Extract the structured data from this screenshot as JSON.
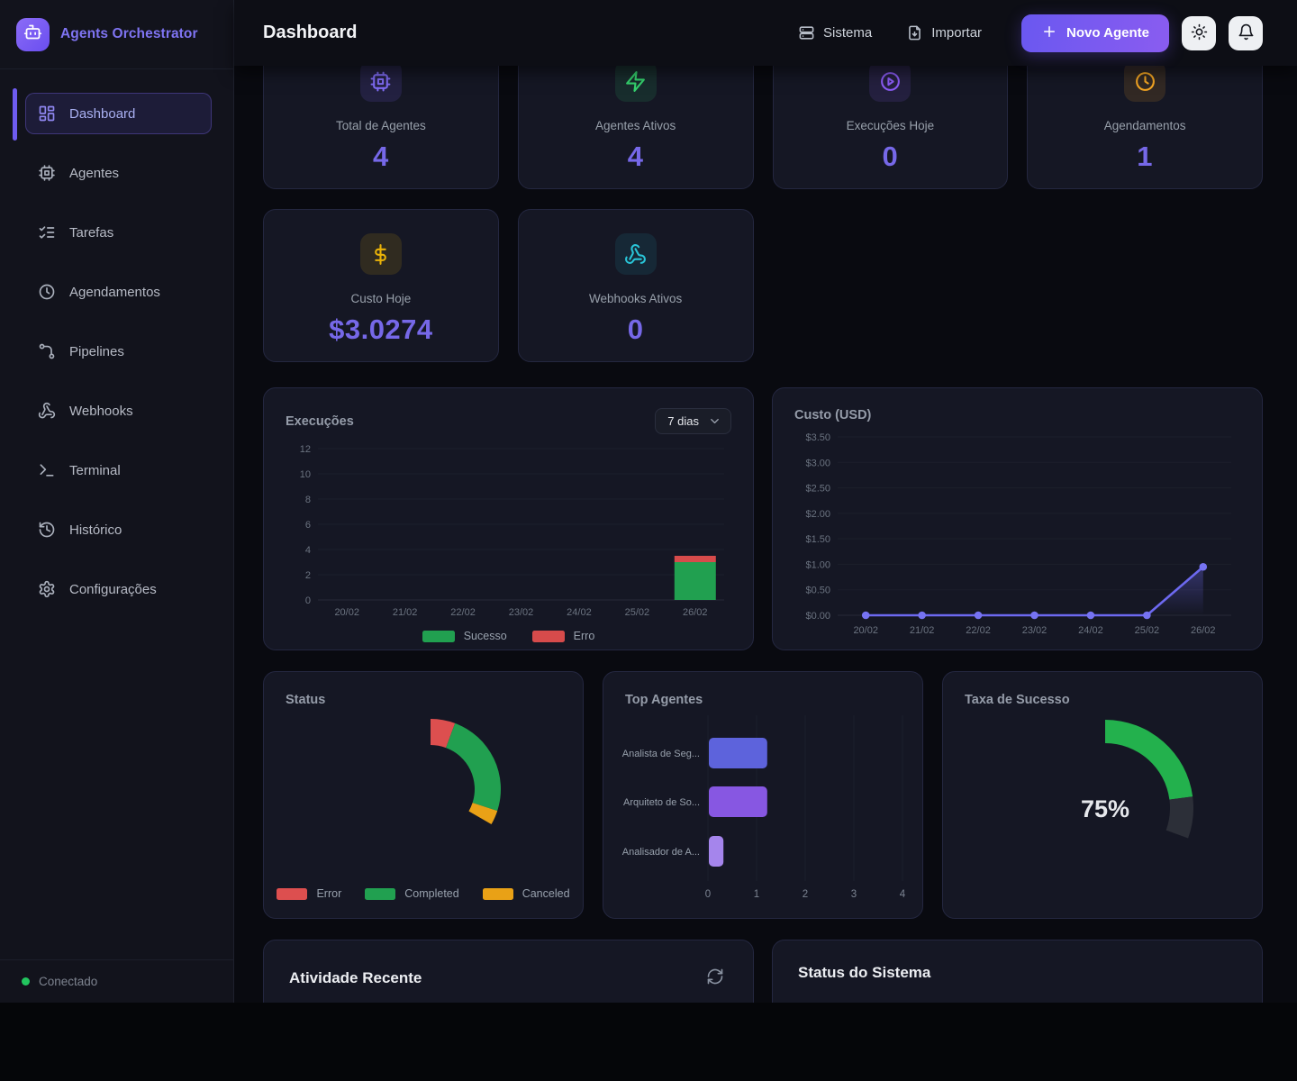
{
  "theme": {
    "accent_purple": "#7668e8",
    "brand_color": "#7f74f2",
    "primary_button_gradient": [
      "#6a58f0",
      "#8a5cf0"
    ],
    "connected_dot": "#22c55e",
    "card_bg": "#151724",
    "sidebar_bg": "#12131c"
  },
  "sidebar": {
    "brand": "Agents Orchestrator",
    "logo_icon": "robot-icon",
    "items": [
      {
        "label": "Dashboard",
        "icon": "dashboard-icon",
        "active": true
      },
      {
        "label": "Agentes",
        "icon": "cpu-icon",
        "active": false
      },
      {
        "label": "Tarefas",
        "icon": "checklist-icon",
        "active": false
      },
      {
        "label": "Agendamentos",
        "icon": "clock-icon",
        "active": false
      },
      {
        "label": "Pipelines",
        "icon": "pipeline-icon",
        "active": false
      },
      {
        "label": "Webhooks",
        "icon": "webhook-icon",
        "active": false
      },
      {
        "label": "Terminal",
        "icon": "terminal-icon",
        "active": false
      },
      {
        "label": "Histórico",
        "icon": "history-icon",
        "active": false
      },
      {
        "label": "Configurações",
        "icon": "gear-icon",
        "active": false
      }
    ],
    "footer_status": "Conectado"
  },
  "header": {
    "title": "Dashboard",
    "actions": [
      {
        "label": "Sistema",
        "icon": "server-icon"
      },
      {
        "label": "Importar",
        "icon": "import-icon"
      }
    ],
    "primary_action": {
      "label": "Novo Agente",
      "icon": "plus-icon"
    },
    "icon_buttons": [
      {
        "name": "theme-toggle",
        "icon": "sun-icon"
      },
      {
        "name": "notifications",
        "icon": "bell-icon"
      }
    ]
  },
  "stats": [
    {
      "label": "Total de Agentes",
      "value": "4",
      "icon": "cpu-icon",
      "icon_color": "#7e6bf2",
      "icon_bg": "rgba(120,100,245,0.14)"
    },
    {
      "label": "Agentes Ativos",
      "value": "4",
      "icon": "lightning-icon",
      "icon_color": "#34d16d",
      "icon_bg": "rgba(46,204,113,0.12)"
    },
    {
      "label": "Execuções Hoje",
      "value": "0",
      "icon": "play-circle-icon",
      "icon_color": "#8b5cf6",
      "icon_bg": "rgba(139,92,246,0.13)"
    },
    {
      "label": "Agendamentos",
      "value": "1",
      "icon": "clock-icon",
      "icon_color": "#f5a623",
      "icon_bg": "rgba(245,166,35,0.13)"
    },
    {
      "label": "Custo Hoje",
      "value": "$3.0274",
      "icon": "dollar-icon",
      "icon_color": "#eab308",
      "icon_bg": "rgba(234,179,8,0.13)"
    },
    {
      "label": "Webhooks Ativos",
      "value": "0",
      "icon": "webhook-icon",
      "icon_color": "#29c5d8",
      "icon_bg": "rgba(41,197,216,0.10)"
    }
  ],
  "chart_data": [
    {
      "id": "execucoes",
      "type": "bar",
      "title": "Execuções",
      "range_selector": {
        "value": "7 dias",
        "icon": "chevron-down-icon"
      },
      "categories": [
        "20/02",
        "21/02",
        "22/02",
        "23/02",
        "24/02",
        "25/02",
        "26/02"
      ],
      "series": [
        {
          "name": "Sucesso",
          "color": "#21a050",
          "values": [
            0,
            0,
            0,
            0,
            0,
            0,
            3
          ]
        },
        {
          "name": "Erro",
          "color": "#d64b4b",
          "values": [
            0,
            0,
            0,
            0,
            0,
            0,
            0.5
          ]
        }
      ],
      "stacked": true,
      "ylim": [
        0,
        12
      ],
      "yticks": [
        0,
        2,
        4,
        6,
        8,
        10,
        12
      ],
      "grid": true,
      "legend_position": "bottom"
    },
    {
      "id": "custo",
      "type": "line",
      "title": "Custo (USD)",
      "categories": [
        "20/02",
        "21/02",
        "22/02",
        "23/02",
        "24/02",
        "25/02",
        "26/02"
      ],
      "series": [
        {
          "name": "Custo",
          "color": "#6d69f0",
          "values": [
            0,
            0,
            0,
            0,
            0,
            0,
            0.95
          ]
        }
      ],
      "ylim": [
        0,
        3.5
      ],
      "ytick_labels": [
        "$0.00",
        "$0.50",
        "$1.00",
        "$1.50",
        "$2.00",
        "$2.50",
        "$3.00",
        "$3.50"
      ],
      "area_fill": true,
      "grid": true
    },
    {
      "id": "status",
      "type": "donut",
      "title": "Status",
      "start_angle_deg": 0,
      "sweep_deg": 120,
      "segments": [
        {
          "label": "Error",
          "color": "#dd4f4f",
          "fraction": 0.17
        },
        {
          "label": "Completed",
          "color": "#21a050",
          "fraction": 0.73
        },
        {
          "label": "Canceled",
          "color": "#e9a116",
          "fraction": 0.1
        }
      ],
      "legend_position": "bottom"
    },
    {
      "id": "top_agentes",
      "type": "bar-horizontal",
      "title": "Top Agentes",
      "categories": [
        "Analista de Seg...",
        "Arquiteto de So...",
        "Analisador de A..."
      ],
      "values": [
        1.2,
        1.2,
        0.3
      ],
      "bar_colors": [
        "#5d63dc",
        "#8757e2",
        "#a585ec"
      ],
      "xlim": [
        0,
        4
      ],
      "xticks": [
        0,
        1,
        2,
        3,
        4
      ],
      "grid": true
    },
    {
      "id": "taxa_sucesso",
      "type": "gauge",
      "title": "Taxa de Sucesso",
      "value_pct": 75,
      "label": "75%",
      "color": "#23b14d",
      "track_color": "#2c2f38",
      "sweep_deg": 110
    }
  ],
  "activity": {
    "title": "Atividade Recente",
    "refresh_icon": "refresh-icon"
  },
  "system_status": {
    "title": "Status do Sistema"
  }
}
